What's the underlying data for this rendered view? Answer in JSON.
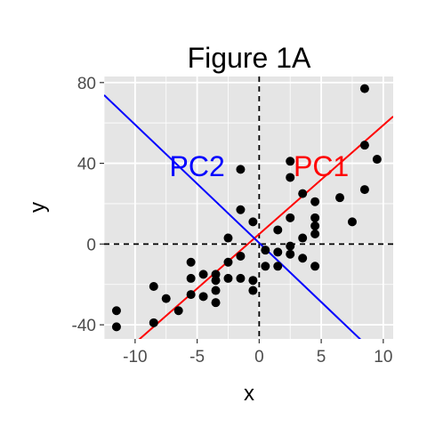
{
  "chart_data": {
    "type": "scatter",
    "title": "Figure 1A",
    "xlabel": "x",
    "ylabel": "y",
    "xlim": [
      -12.5,
      10.8
    ],
    "ylim": [
      -47,
      83
    ],
    "xticks": [
      -10,
      -5,
      0,
      5,
      10
    ],
    "yticks": [
      -40,
      0,
      40,
      80
    ],
    "xtick_labels": [
      "-10",
      "-5",
      "0",
      "5",
      "10"
    ],
    "ytick_labels": [
      "-40",
      "0",
      "40",
      "80"
    ],
    "grid": true,
    "points": [
      {
        "x": -11.5,
        "y": -33
      },
      {
        "x": -11.5,
        "y": -41
      },
      {
        "x": -8.5,
        "y": -21
      },
      {
        "x": -8.5,
        "y": -39
      },
      {
        "x": -7.5,
        "y": -27
      },
      {
        "x": -6.5,
        "y": -33
      },
      {
        "x": -5.5,
        "y": -9
      },
      {
        "x": -5.5,
        "y": -17
      },
      {
        "x": -5.5,
        "y": -25
      },
      {
        "x": -4.5,
        "y": -15
      },
      {
        "x": -4.5,
        "y": -26
      },
      {
        "x": -3.5,
        "y": -15
      },
      {
        "x": -3.5,
        "y": -18
      },
      {
        "x": -3.5,
        "y": -23
      },
      {
        "x": -3.5,
        "y": -29
      },
      {
        "x": -2.5,
        "y": -9
      },
      {
        "x": -2.5,
        "y": -17
      },
      {
        "x": -2.5,
        "y": 3
      },
      {
        "x": -1.5,
        "y": -6
      },
      {
        "x": -1.5,
        "y": 17
      },
      {
        "x": -1.5,
        "y": -17
      },
      {
        "x": -1.5,
        "y": 37
      },
      {
        "x": -0.5,
        "y": -18
      },
      {
        "x": -0.5,
        "y": -23
      },
      {
        "x": -0.5,
        "y": 11
      },
      {
        "x": 0.5,
        "y": -3
      },
      {
        "x": 0.5,
        "y": -11
      },
      {
        "x": 1.5,
        "y": 7
      },
      {
        "x": 1.5,
        "y": -11
      },
      {
        "x": 1.5,
        "y": -4
      },
      {
        "x": 2.5,
        "y": 13
      },
      {
        "x": 2.5,
        "y": 33
      },
      {
        "x": 2.5,
        "y": -1
      },
      {
        "x": 2.5,
        "y": -5
      },
      {
        "x": 2.5,
        "y": 41
      },
      {
        "x": 3.5,
        "y": 25
      },
      {
        "x": 3.5,
        "y": -7
      },
      {
        "x": 3.5,
        "y": 3
      },
      {
        "x": 4.5,
        "y": 21
      },
      {
        "x": 4.5,
        "y": 13
      },
      {
        "x": 4.5,
        "y": 9
      },
      {
        "x": 4.5,
        "y": 5
      },
      {
        "x": 4.5,
        "y": -11
      },
      {
        "x": 6.5,
        "y": 23
      },
      {
        "x": 7.5,
        "y": 11
      },
      {
        "x": 8.5,
        "y": 77
      },
      {
        "x": 8.5,
        "y": 49
      },
      {
        "x": 8.5,
        "y": 27
      },
      {
        "x": 9.5,
        "y": 42
      }
    ],
    "lines": [
      {
        "name": "PC1",
        "color": "#ff0000",
        "x1": -12.5,
        "y1": -62.5,
        "x2": 10.8,
        "y2": 63.2
      },
      {
        "name": "PC2",
        "color": "#0000ff",
        "x1": -12.5,
        "y1": 73.8,
        "x2": 10.8,
        "y2": -62.7
      }
    ],
    "reference_lines": [
      {
        "orientation": "vertical",
        "value": 0,
        "style": "dashed"
      },
      {
        "orientation": "horizontal",
        "value": 0,
        "style": "dashed"
      }
    ],
    "annotations": [
      {
        "text": "PC2",
        "x": -5,
        "y": 39,
        "color": "#0000ff"
      },
      {
        "text": "PC1",
        "x": 5,
        "y": 39,
        "color": "#ff0000"
      }
    ],
    "colors": {
      "panel_background": "#e5e5e5",
      "grid": "#ffffff",
      "points": "#000000"
    }
  }
}
